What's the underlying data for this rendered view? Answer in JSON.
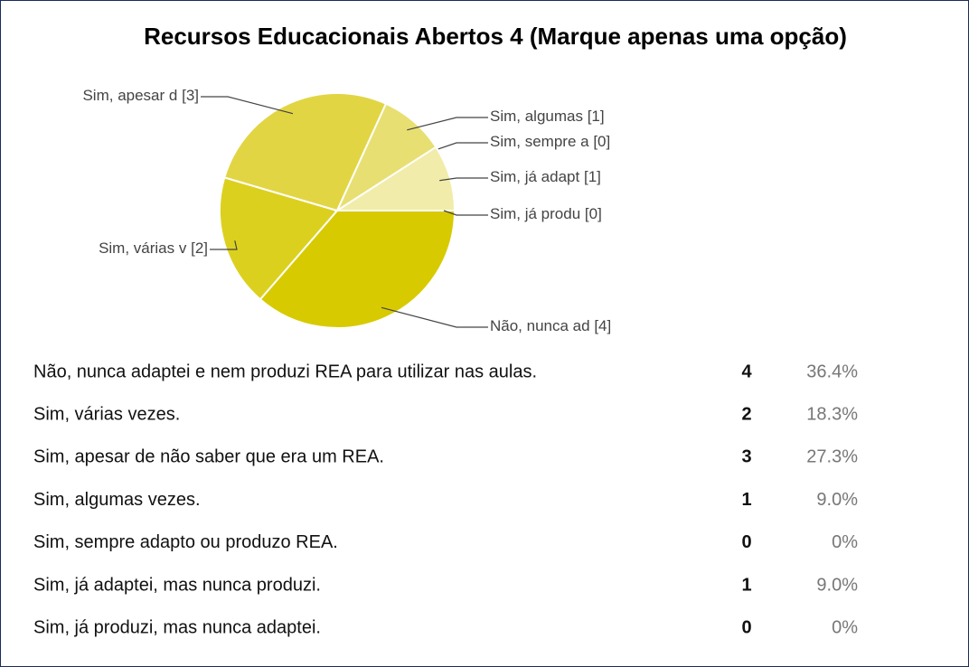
{
  "chart_data": {
    "type": "pie",
    "title": "Recursos Educacionais Abertos 4 (Marque apenas uma opção)",
    "categories": [
      "Não, nunca ad",
      "Sim, várias v",
      "Sim, apesar d",
      "Sim, algumas ",
      "Sim, sempre a",
      "Sim, já adapt",
      "Sim, já produ"
    ],
    "values": [
      4,
      2,
      3,
      1,
      0,
      1,
      0
    ],
    "value_labels": [
      "[4]",
      "[2]",
      "[3]",
      "[1]",
      "[0]",
      "[1]",
      "[0]"
    ],
    "colors": [
      "#d8ca00",
      "#dcd01e",
      "#e2d543",
      "#e8df72",
      "#ede79a",
      "#f1eca9",
      "#f5f1c0"
    ]
  },
  "table": {
    "rows": [
      [
        "Não, nunca adaptei e nem produzi REA para utilizar nas aulas.",
        "4",
        "36.4%"
      ],
      [
        "Sim, várias vezes.",
        "2",
        "18.3%"
      ],
      [
        "Sim, apesar de não saber que era um REA.",
        "3",
        "27.3%"
      ],
      [
        "Sim, algumas vezes.",
        "1",
        "9.0%"
      ],
      [
        "Sim, sempre adapto ou produzo REA.",
        "0",
        "0%"
      ],
      [
        "Sim, já adaptei, mas nunca produzi.",
        "1",
        "9.0%"
      ],
      [
        "Sim, já produzi, mas nunca adaptei.",
        "0",
        "0%"
      ]
    ]
  }
}
